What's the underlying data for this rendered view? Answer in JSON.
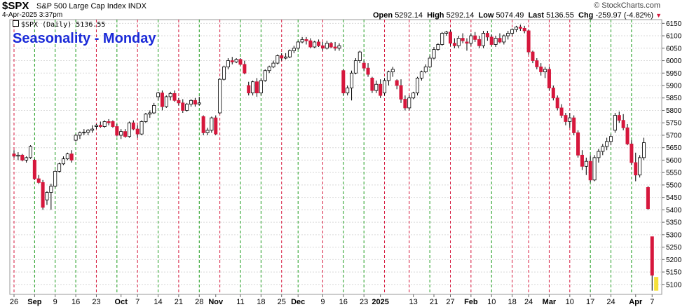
{
  "header": {
    "symbol": "$SPX",
    "index_name": "S&P 500 Large Cap Index",
    "exchange": "INDX",
    "date_time": "4-Apr-2025 3:37pm",
    "brand": "© StockCharts.com",
    "open_label": "Open",
    "open": "5292.14",
    "high_label": "High",
    "high": "5292.14",
    "low_label": "Low",
    "low": "5074.49",
    "last_label": "Last",
    "last": "5136.55",
    "chg_label": "Chg",
    "chg": "-259.97 (-4.82%)",
    "chg_arrow": "▼"
  },
  "legend": {
    "text": "$SPX (Daily) 5136.55"
  },
  "overlay_title": "Seasonality - Monday",
  "colors": {
    "up": "#ffffff",
    "down": "#d6173c",
    "wick": "#000000",
    "title": "#1a2ad8",
    "green_line": "#1a9a1a",
    "red_line": "#d6173c",
    "grid": "#d9d9d9",
    "highlight": "#f5e03a"
  },
  "chart_data": {
    "type": "candlestick",
    "ylim": [
      5060,
      6165
    ],
    "yticks": [
      5100,
      5150,
      5200,
      5250,
      5300,
      5350,
      5400,
      5450,
      5500,
      5550,
      5600,
      5650,
      5700,
      5750,
      5800,
      5850,
      5900,
      5950,
      6000,
      6050,
      6100,
      6150
    ],
    "xticks": [
      {
        "label": "26",
        "i": 0
      },
      {
        "label": "Sep",
        "i": 5,
        "bold": true
      },
      {
        "label": "9",
        "i": 10
      },
      {
        "label": "16",
        "i": 15
      },
      {
        "label": "23",
        "i": 20
      },
      {
        "label": "Oct",
        "i": 26,
        "bold": true
      },
      {
        "label": "7",
        "i": 30
      },
      {
        "label": "14",
        "i": 35
      },
      {
        "label": "21",
        "i": 40
      },
      {
        "label": "28",
        "i": 45
      },
      {
        "label": "Nov",
        "i": 49,
        "bold": true
      },
      {
        "label": "11",
        "i": 55
      },
      {
        "label": "18",
        "i": 60
      },
      {
        "label": "25",
        "i": 65
      },
      {
        "label": "Dec",
        "i": 69,
        "bold": true
      },
      {
        "label": "9",
        "i": 75
      },
      {
        "label": "16",
        "i": 80
      },
      {
        "label": "23",
        "i": 85
      },
      {
        "label": "2025",
        "i": 89,
        "bold": true
      },
      {
        "label": "13",
        "i": 97
      },
      {
        "label": "21",
        "i": 102
      },
      {
        "label": "27",
        "i": 106
      },
      {
        "label": "Feb",
        "i": 111,
        "bold": true
      },
      {
        "label": "10",
        "i": 116
      },
      {
        "label": "18",
        "i": 121
      },
      {
        "label": "24",
        "i": 125
      },
      {
        "label": "Mar",
        "i": 130,
        "bold": true
      },
      {
        "label": "10",
        "i": 135
      },
      {
        "label": "17",
        "i": 140
      },
      {
        "label": "24",
        "i": 145
      },
      {
        "label": "Apr",
        "i": 151,
        "bold": true
      },
      {
        "label": "7",
        "i": 155
      }
    ],
    "mondays": [
      {
        "i": 0,
        "color": "red"
      },
      {
        "i": 5,
        "color": "green"
      },
      {
        "i": 10,
        "color": "green"
      },
      {
        "i": 15,
        "color": "green"
      },
      {
        "i": 20,
        "color": "red"
      },
      {
        "i": 25,
        "color": "green"
      },
      {
        "i": 30,
        "color": "red"
      },
      {
        "i": 35,
        "color": "green"
      },
      {
        "i": 40,
        "color": "red"
      },
      {
        "i": 45,
        "color": "green"
      },
      {
        "i": 50,
        "color": "red"
      },
      {
        "i": 55,
        "color": "green"
      },
      {
        "i": 60,
        "color": "green"
      },
      {
        "i": 65,
        "color": "red"
      },
      {
        "i": 69,
        "color": "green"
      },
      {
        "i": 75,
        "color": "red"
      },
      {
        "i": 80,
        "color": "green"
      },
      {
        "i": 85,
        "color": "green"
      },
      {
        "i": 90,
        "color": "red"
      },
      {
        "i": 96,
        "color": "red"
      },
      {
        "i": 101,
        "color": "green"
      },
      {
        "i": 106,
        "color": "red"
      },
      {
        "i": 111,
        "color": "red"
      },
      {
        "i": 116,
        "color": "green"
      },
      {
        "i": 121,
        "color": "red"
      },
      {
        "i": 125,
        "color": "red"
      },
      {
        "i": 130,
        "color": "red"
      },
      {
        "i": 135,
        "color": "red"
      },
      {
        "i": 140,
        "color": "green"
      },
      {
        "i": 145,
        "color": "green"
      },
      {
        "i": 150,
        "color": "green"
      }
    ],
    "candles": [
      [
        5625,
        5640,
        5610,
        5616
      ],
      [
        5616,
        5632,
        5600,
        5620
      ],
      [
        5620,
        5625,
        5595,
        5600
      ],
      [
        5600,
        5615,
        5590,
        5610
      ],
      [
        5610,
        5660,
        5605,
        5655
      ],
      [
        5600,
        5605,
        5520,
        5525
      ],
      [
        5525,
        5540,
        5505,
        5510
      ],
      [
        5510,
        5520,
        5400,
        5410
      ],
      [
        5440,
        5475,
        5420,
        5470
      ],
      [
        5470,
        5505,
        5400,
        5495
      ],
      [
        5495,
        5560,
        5490,
        5555
      ],
      [
        5555,
        5590,
        5550,
        5585
      ],
      [
        5585,
        5615,
        5580,
        5605
      ],
      [
        5605,
        5630,
        5600,
        5625
      ],
      [
        5625,
        5640,
        5590,
        5600
      ],
      [
        5680,
        5705,
        5675,
        5700
      ],
      [
        5700,
        5715,
        5685,
        5710
      ],
      [
        5710,
        5725,
        5700,
        5712
      ],
      [
        5712,
        5725,
        5700,
        5720
      ],
      [
        5720,
        5740,
        5710,
        5725
      ],
      [
        5735,
        5745,
        5725,
        5740
      ],
      [
        5740,
        5755,
        5730,
        5735
      ],
      [
        5735,
        5760,
        5730,
        5755
      ],
      [
        5755,
        5765,
        5740,
        5750
      ],
      [
        5755,
        5760,
        5730,
        5735
      ],
      [
        5735,
        5745,
        5695,
        5700
      ],
      [
        5700,
        5725,
        5685,
        5715
      ],
      [
        5715,
        5725,
        5690,
        5695
      ],
      [
        5695,
        5755,
        5690,
        5750
      ],
      [
        5750,
        5760,
        5720,
        5725
      ],
      [
        5725,
        5740,
        5690,
        5705
      ],
      [
        5705,
        5760,
        5700,
        5755
      ],
      [
        5755,
        5790,
        5750,
        5785
      ],
      [
        5785,
        5800,
        5770,
        5790
      ],
      [
        5790,
        5830,
        5785,
        5820
      ],
      [
        5855,
        5875,
        5840,
        5870
      ],
      [
        5870,
        5880,
        5800,
        5815
      ],
      [
        5815,
        5860,
        5810,
        5855
      ],
      [
        5855,
        5875,
        5840,
        5868
      ],
      [
        5868,
        5880,
        5835,
        5840
      ],
      [
        5840,
        5850,
        5820,
        5830
      ],
      [
        5830,
        5845,
        5790,
        5800
      ],
      [
        5800,
        5830,
        5795,
        5825
      ],
      [
        5825,
        5845,
        5815,
        5840
      ],
      [
        5840,
        5850,
        5815,
        5825
      ],
      [
        5825,
        5855,
        5820,
        5830
      ],
      [
        5775,
        5780,
        5700,
        5710
      ],
      [
        5710,
        5730,
        5700,
        5720
      ],
      [
        5720,
        5775,
        5710,
        5770
      ],
      [
        5770,
        5780,
        5700,
        5705
      ],
      [
        5790,
        5930,
        5785,
        5925
      ],
      [
        5925,
        5980,
        5920,
        5975
      ],
      [
        5975,
        6010,
        5965,
        6000
      ],
      [
        6000,
        6015,
        5985,
        5995
      ],
      [
        5995,
        6010,
        5990,
        6005
      ],
      [
        6005,
        6010,
        5980,
        5985
      ],
      [
        5985,
        6000,
        5945,
        5950
      ],
      [
        5900,
        5915,
        5860,
        5870
      ],
      [
        5870,
        5920,
        5860,
        5915
      ],
      [
        5915,
        5930,
        5855,
        5870
      ],
      [
        5870,
        5930,
        5860,
        5920
      ],
      [
        5920,
        5965,
        5915,
        5960
      ],
      [
        5960,
        5980,
        5950,
        5975
      ],
      [
        5975,
        6000,
        5970,
        5990
      ],
      [
        5990,
        6025,
        5985,
        6020
      ],
      [
        6020,
        6030,
        6000,
        6010
      ],
      [
        6010,
        6030,
        6005,
        6015
      ],
      [
        6015,
        6045,
        6010,
        6040
      ],
      [
        6040,
        6060,
        6030,
        6050
      ],
      [
        6050,
        6080,
        6045,
        6075
      ],
      [
        6075,
        6095,
        6070,
        6085
      ],
      [
        6085,
        6095,
        6065,
        6080
      ],
      [
        6080,
        6090,
        6050,
        6055
      ],
      [
        6055,
        6080,
        6050,
        6075
      ],
      [
        6075,
        6085,
        6055,
        6060
      ],
      [
        6060,
        6075,
        6040,
        6050
      ],
      [
        6050,
        6080,
        6045,
        6070
      ],
      [
        6070,
        6075,
        6050,
        6055
      ],
      [
        6055,
        6075,
        6040,
        6050
      ],
      [
        6050,
        6070,
        6040,
        6060
      ],
      [
        5960,
        5965,
        5860,
        5870
      ],
      [
        5870,
        5900,
        5860,
        5890
      ],
      [
        5890,
        5960,
        5840,
        5950
      ],
      [
        5950,
        6010,
        5945,
        6000
      ],
      [
        6000,
        6040,
        5990,
        6035
      ],
      [
        5990,
        6000,
        5960,
        5970
      ],
      [
        5970,
        5990,
        5935,
        5945
      ],
      [
        5930,
        5935,
        5870,
        5880
      ],
      [
        5880,
        5920,
        5870,
        5905
      ],
      [
        5905,
        5925,
        5850,
        5860
      ],
      [
        5870,
        5930,
        5860,
        5920
      ],
      [
        5920,
        5960,
        5900,
        5955
      ],
      [
        5955,
        5975,
        5935,
        5965
      ],
      [
        5920,
        5925,
        5885,
        5900
      ],
      [
        5900,
        5925,
        5830,
        5845
      ],
      [
        5845,
        5860,
        5800,
        5810
      ],
      [
        5810,
        5860,
        5800,
        5850
      ],
      [
        5850,
        5875,
        5845,
        5870
      ],
      [
        5870,
        5935,
        5860,
        5930
      ],
      [
        5930,
        5960,
        5920,
        5955
      ],
      [
        5955,
        5985,
        5950,
        5975
      ],
      [
        5975,
        6020,
        5970,
        6010
      ],
      [
        6010,
        6055,
        6005,
        6045
      ],
      [
        6045,
        6070,
        6040,
        6065
      ],
      [
        6065,
        6115,
        6060,
        6110
      ],
      [
        6110,
        6120,
        6100,
        6115
      ],
      [
        6115,
        6125,
        6060,
        6070
      ],
      [
        6070,
        6090,
        6050,
        6060
      ],
      [
        6060,
        6100,
        6050,
        6090
      ],
      [
        6090,
        6110,
        6070,
        6080
      ],
      [
        6075,
        6090,
        6040,
        6070
      ],
      [
        6070,
        6110,
        6060,
        6100
      ],
      [
        6100,
        6115,
        6075,
        6085
      ],
      [
        6085,
        6100,
        6050,
        6060
      ],
      [
        6060,
        6120,
        6050,
        6110
      ],
      [
        6110,
        6120,
        6080,
        6095
      ],
      [
        6095,
        6105,
        6060,
        6065
      ],
      [
        6065,
        6100,
        6055,
        6090
      ],
      [
        6090,
        6110,
        6070,
        6075
      ],
      [
        6075,
        6105,
        6065,
        6100
      ],
      [
        6100,
        6120,
        6085,
        6110
      ],
      [
        6110,
        6130,
        6100,
        6125
      ],
      [
        6125,
        6140,
        6115,
        6135
      ],
      [
        6135,
        6145,
        6120,
        6130
      ],
      [
        6130,
        6140,
        6110,
        6120
      ],
      [
        6120,
        6125,
        6025,
        6035
      ],
      [
        6035,
        6040,
        5990,
        6000
      ],
      [
        6000,
        6010,
        5965,
        5975
      ],
      [
        5975,
        5990,
        5940,
        5955
      ],
      [
        5955,
        5975,
        5930,
        5965
      ],
      [
        5965,
        5975,
        5880,
        5890
      ],
      [
        5890,
        5900,
        5840,
        5850
      ],
      [
        5850,
        5860,
        5800,
        5810
      ],
      [
        5810,
        5825,
        5770,
        5780
      ],
      [
        5780,
        5790,
        5740,
        5755
      ],
      [
        5755,
        5790,
        5730,
        5770
      ],
      [
        5770,
        5780,
        5700,
        5710
      ],
      [
        5710,
        5720,
        5610,
        5620
      ],
      [
        5620,
        5640,
        5560,
        5575
      ],
      [
        5575,
        5610,
        5540,
        5595
      ],
      [
        5595,
        5620,
        5510,
        5520
      ],
      [
        5520,
        5620,
        5515,
        5610
      ],
      [
        5610,
        5645,
        5590,
        5635
      ],
      [
        5635,
        5665,
        5620,
        5655
      ],
      [
        5655,
        5690,
        5640,
        5675
      ],
      [
        5675,
        5705,
        5660,
        5695
      ],
      [
        5720,
        5790,
        5710,
        5780
      ],
      [
        5780,
        5795,
        5750,
        5760
      ],
      [
        5760,
        5785,
        5720,
        5730
      ],
      [
        5730,
        5745,
        5660,
        5665
      ],
      [
        5665,
        5680,
        5580,
        5590
      ],
      [
        5590,
        5630,
        5515,
        5540
      ],
      [
        5540,
        5620,
        5530,
        5610
      ],
      [
        5610,
        5690,
        5600,
        5670
      ],
      [
        5490,
        5495,
        5400,
        5405
      ],
      [
        5292,
        5292,
        5075,
        5137
      ]
    ]
  }
}
